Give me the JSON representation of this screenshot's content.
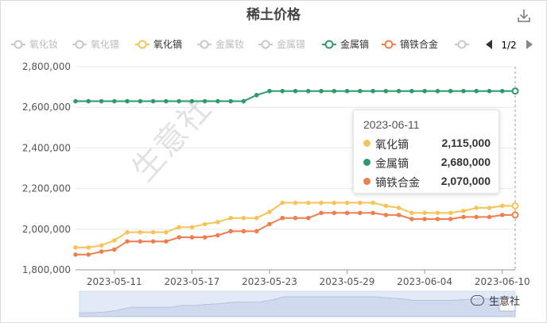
{
  "chart_data": {
    "type": "line",
    "title": "稀土价格",
    "legend": {
      "position": "top",
      "page": "1/2",
      "items": [
        {
          "name": "氧化钕",
          "color": "#c8c8c8",
          "active": false
        },
        {
          "name": "氧化镨",
          "color": "#c8c8c8",
          "active": false
        },
        {
          "name": "氧化镝",
          "color": "#f6c45a",
          "active": true
        },
        {
          "name": "金属钕",
          "color": "#c8c8c8",
          "active": false
        },
        {
          "name": "金属镨",
          "color": "#c8c8c8",
          "active": false
        },
        {
          "name": "金属镝",
          "color": "#2e9a6a",
          "active": true
        },
        {
          "name": "镝铁合金",
          "color": "#ef7f4e",
          "active": true
        },
        {
          "name": "",
          "color": "#c8c8c8",
          "active": false
        }
      ]
    },
    "x": [
      "2023-05-08",
      "2023-05-09",
      "2023-05-10",
      "2023-05-11",
      "2023-05-12",
      "2023-05-13",
      "2023-05-14",
      "2023-05-15",
      "2023-05-16",
      "2023-05-17",
      "2023-05-18",
      "2023-05-19",
      "2023-05-20",
      "2023-05-21",
      "2023-05-22",
      "2023-05-23",
      "2023-05-24",
      "2023-05-25",
      "2023-05-26",
      "2023-05-27",
      "2023-05-28",
      "2023-05-29",
      "2023-05-30",
      "2023-05-31",
      "2023-06-01",
      "2023-06-02",
      "2023-06-03",
      "2023-06-04",
      "2023-06-05",
      "2023-06-06",
      "2023-06-07",
      "2023-06-08",
      "2023-06-09",
      "2023-06-10",
      "2023-06-11"
    ],
    "x_tick_labels": [
      "2023-05-11",
      "2023-05-17",
      "2023-05-23",
      "2023-05-29",
      "2023-06-04",
      "2023-06-10"
    ],
    "y_ticks": [
      "1,800,000",
      "2,000,000",
      "2,200,000",
      "2,400,000",
      "2,600,000",
      "2,800,000"
    ],
    "ylim": [
      1800000,
      2800000
    ],
    "grid": true,
    "series": [
      {
        "name": "金属镝",
        "color": "#2e9a6a",
        "values": [
          2630000,
          2630000,
          2630000,
          2630000,
          2630000,
          2630000,
          2630000,
          2630000,
          2630000,
          2630000,
          2630000,
          2630000,
          2630000,
          2630000,
          2660000,
          2680000,
          2680000,
          2680000,
          2680000,
          2680000,
          2680000,
          2680000,
          2680000,
          2680000,
          2680000,
          2680000,
          2680000,
          2680000,
          2680000,
          2680000,
          2680000,
          2680000,
          2680000,
          2680000,
          2680000
        ]
      },
      {
        "name": "氧化镝",
        "color": "#f6c45a",
        "values": [
          1910000,
          1910000,
          1920000,
          1945000,
          1985000,
          1985000,
          1985000,
          1985000,
          2010000,
          2010000,
          2025000,
          2035000,
          2055000,
          2055000,
          2055000,
          2085000,
          2130000,
          2130000,
          2130000,
          2130000,
          2130000,
          2130000,
          2130000,
          2130000,
          2115000,
          2105000,
          2080000,
          2080000,
          2080000,
          2080000,
          2090000,
          2105000,
          2105000,
          2115000,
          2115000
        ]
      },
      {
        "name": "镝铁合金",
        "color": "#ef7f4e",
        "values": [
          1875000,
          1875000,
          1890000,
          1900000,
          1940000,
          1940000,
          1940000,
          1940000,
          1960000,
          1960000,
          1960000,
          1970000,
          1990000,
          1990000,
          1990000,
          2025000,
          2055000,
          2055000,
          2055000,
          2080000,
          2080000,
          2080000,
          2080000,
          2080000,
          2070000,
          2070000,
          2050000,
          2050000,
          2050000,
          2050000,
          2060000,
          2060000,
          2060000,
          2070000,
          2070000
        ]
      }
    ],
    "tooltip": {
      "date": "2023-06-11",
      "rows": [
        {
          "name": "氧化镝",
          "value": "2,115,000",
          "color": "#f6c45a"
        },
        {
          "name": "金属镝",
          "value": "2,680,000",
          "color": "#2e9a6a"
        },
        {
          "name": "镝铁合金",
          "value": "2,070,000",
          "color": "#ef7f4e"
        }
      ]
    }
  },
  "toolbar": {
    "download_icon": "download-icon",
    "prev_icon": "triangle-left-icon",
    "next_icon": "triangle-right-icon"
  },
  "watermark": "生意社",
  "brand": "生意社",
  "brand_icon": "wechat-icon"
}
